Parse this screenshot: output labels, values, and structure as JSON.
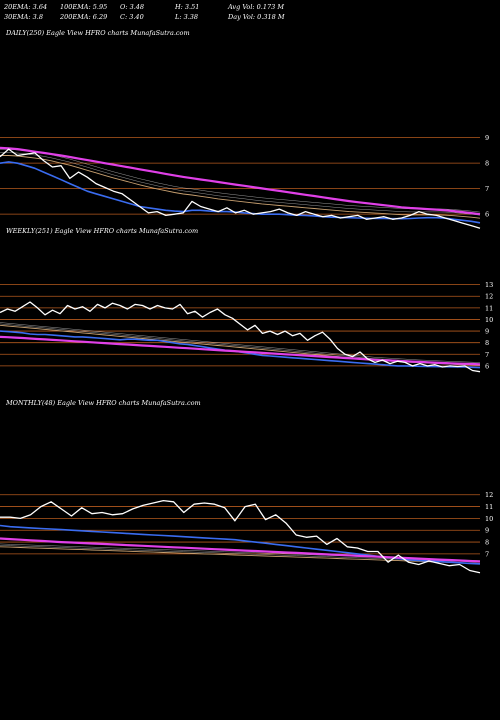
{
  "header": {
    "row1": [
      "20EMA: 3.64",
      "100EMA: 5.95",
      "O: 3.48",
      "H: 3.51",
      "Avg Vol: 0.173 M"
    ],
    "row2": [
      "30EMA: 3.8",
      "200EMA: 6.29",
      "C: 3.40",
      "L: 3.38",
      "Day Vol: 0.318 M"
    ]
  },
  "colors": {
    "background": "#000000",
    "price": "#ffffff",
    "ema_short": "#3a6cf0",
    "ema_long": "#e040e8",
    "ema_mid": "#c8a070",
    "gridline": "#b55a1e"
  },
  "chart_data": [
    {
      "type": "line",
      "title": "DAILY(250) Eagle   View  HFRO charts MunafaSutra.com",
      "y_ticks": [
        "9",
        "8",
        "7",
        "6"
      ],
      "ylim": [
        5.3,
        9.3
      ],
      "series": [
        {
          "values": [
            8.25,
            8.55,
            8.3,
            8.35,
            8.4,
            8.1,
            7.85,
            7.9,
            7.4,
            7.65,
            7.45,
            7.2,
            7.05,
            6.9,
            6.8,
            6.55,
            6.3,
            6.05,
            6.1,
            5.95,
            6.0,
            6.05,
            6.5,
            6.3,
            6.2,
            6.1,
            6.25,
            6.05,
            6.15,
            6.0,
            6.05,
            6.1,
            6.2,
            6.05,
            5.95,
            6.1,
            6.0,
            5.9,
            5.95,
            5.85,
            5.9,
            5.95,
            5.8,
            5.85,
            5.9,
            5.8,
            5.85,
            5.95,
            6.1,
            6.0,
            5.95,
            5.85,
            5.75,
            5.65,
            5.55,
            5.45
          ]
        },
        {
          "values": [
            8.0,
            8.05,
            8.0,
            7.9,
            7.8,
            7.65,
            7.5,
            7.35,
            7.2,
            7.05,
            6.9,
            6.8,
            6.7,
            6.6,
            6.5,
            6.4,
            6.3,
            6.25,
            6.2,
            6.15,
            6.12,
            6.1,
            6.15,
            6.15,
            6.12,
            6.1,
            6.1,
            6.08,
            6.05,
            6.02,
            6.0,
            6.0,
            6.0,
            5.98,
            5.96,
            5.95,
            5.93,
            5.9,
            5.88,
            5.87,
            5.86,
            5.85,
            5.84,
            5.83,
            5.83,
            5.82,
            5.82,
            5.83,
            5.85,
            5.86,
            5.86,
            5.84,
            5.8,
            5.76,
            5.72,
            5.66
          ]
        },
        {
          "values": [
            8.6,
            8.58,
            8.55,
            8.5,
            8.45,
            8.4,
            8.35,
            8.3,
            8.24,
            8.18,
            8.12,
            8.06,
            8.0,
            7.94,
            7.88,
            7.82,
            7.76,
            7.7,
            7.64,
            7.58,
            7.52,
            7.46,
            7.41,
            7.36,
            7.31,
            7.26,
            7.21,
            7.16,
            7.11,
            7.06,
            7.01,
            6.96,
            6.91,
            6.86,
            6.81,
            6.76,
            6.71,
            6.66,
            6.61,
            6.56,
            6.51,
            6.47,
            6.43,
            6.39,
            6.35,
            6.31,
            6.27,
            6.24,
            6.22,
            6.2,
            6.18,
            6.15,
            6.12,
            6.08,
            6.04,
            6.0
          ]
        },
        {
          "values": [
            8.3,
            8.3,
            8.28,
            8.24,
            8.2,
            8.15,
            8.08,
            8.0,
            7.92,
            7.82,
            7.72,
            7.62,
            7.52,
            7.42,
            7.33,
            7.24,
            7.15,
            7.07,
            6.99,
            6.92,
            6.85,
            6.79,
            6.75,
            6.7,
            6.65,
            6.6,
            6.56,
            6.52,
            6.48,
            6.44,
            6.4,
            6.37,
            6.34,
            6.31,
            6.28,
            6.25,
            6.22,
            6.19,
            6.16,
            6.13,
            6.1,
            6.08,
            6.06,
            6.04,
            6.02,
            6.0,
            5.98,
            5.97,
            5.97,
            5.97,
            5.97,
            5.96,
            5.94,
            5.91,
            5.88,
            5.84
          ]
        }
      ]
    },
    {
      "type": "line",
      "title": "WEEKLY(251) Eagle   View  HFRO charts MunafaSutra.com",
      "y_ticks": [
        "13",
        "12",
        "11",
        "10",
        "9",
        "8",
        "7",
        "6"
      ],
      "ylim": [
        5.3,
        13.4
      ],
      "series": [
        {
          "values": [
            10.6,
            10.9,
            10.7,
            11.1,
            11.5,
            11.0,
            10.4,
            10.8,
            10.5,
            11.2,
            10.9,
            11.1,
            10.7,
            11.3,
            11.0,
            11.4,
            11.2,
            10.9,
            11.3,
            11.2,
            10.9,
            11.2,
            11.0,
            10.9,
            11.3,
            10.5,
            10.7,
            10.2,
            10.6,
            10.9,
            10.4,
            10.1,
            9.6,
            9.1,
            9.5,
            8.8,
            9.0,
            8.7,
            9.0,
            8.6,
            8.8,
            8.2,
            8.6,
            8.9,
            8.3,
            7.5,
            7.0,
            6.8,
            7.2,
            6.6,
            6.3,
            6.5,
            6.2,
            6.4,
            6.3,
            6.0,
            6.2,
            6.0,
            6.1,
            5.9,
            6.0,
            5.95,
            6.0,
            5.6,
            5.5
          ]
        },
        {
          "values": [
            9.0,
            8.95,
            8.9,
            8.85,
            8.75,
            8.7,
            8.7,
            8.65,
            8.6,
            8.55,
            8.5,
            8.5,
            8.45,
            8.4,
            8.35,
            8.3,
            8.25,
            8.3,
            8.3,
            8.25,
            8.2,
            8.2,
            8.1,
            8.0,
            7.9,
            7.85,
            7.75,
            7.65,
            7.55,
            7.45,
            7.35,
            7.3,
            7.2,
            7.1,
            7.0,
            6.9,
            6.85,
            6.8,
            6.75,
            6.7,
            6.65,
            6.6,
            6.55,
            6.5,
            6.45,
            6.4,
            6.35,
            6.3,
            6.25,
            6.2,
            6.15,
            6.1,
            6.05,
            6.0,
            6.0,
            5.98,
            5.96,
            5.95,
            5.94,
            5.93,
            5.92,
            5.9,
            5.9,
            5.88,
            5.85
          ]
        },
        {
          "values": [
            8.5,
            8.47,
            8.44,
            8.4,
            8.36,
            8.32,
            8.28,
            8.24,
            8.2,
            8.16,
            8.12,
            8.08,
            8.04,
            8.0,
            7.96,
            7.92,
            7.88,
            7.84,
            7.8,
            7.76,
            7.72,
            7.68,
            7.64,
            7.6,
            7.56,
            7.52,
            7.48,
            7.44,
            7.4,
            7.36,
            7.32,
            7.28,
            7.24,
            7.2,
            7.16,
            7.12,
            7.08,
            7.04,
            7.0,
            6.96,
            6.92,
            6.88,
            6.84,
            6.8,
            6.76,
            6.72,
            6.68,
            6.64,
            6.6,
            6.56,
            6.52,
            6.49,
            6.46,
            6.43,
            6.4,
            6.37,
            6.34,
            6.31,
            6.28,
            6.25,
            6.22,
            6.2,
            6.18,
            6.16,
            6.14
          ]
        },
        {
          "values": [
            9.5,
            9.44,
            9.38,
            9.32,
            9.26,
            9.2,
            9.14,
            9.08,
            9.02,
            8.96,
            8.9,
            8.84,
            8.78,
            8.72,
            8.66,
            8.6,
            8.54,
            8.48,
            8.42,
            8.36,
            8.3,
            8.24,
            8.18,
            8.12,
            8.06,
            8.0,
            7.94,
            7.88,
            7.82,
            7.76,
            7.7,
            7.64,
            7.58,
            7.52,
            7.46,
            7.4,
            7.34,
            7.28,
            7.22,
            7.16,
            7.1,
            7.04,
            6.98,
            6.92,
            6.86,
            6.8,
            6.74,
            6.68,
            6.62,
            6.56,
            6.5,
            6.46,
            6.42,
            6.38,
            6.34,
            6.3,
            6.27,
            6.24,
            6.21,
            6.18,
            6.15,
            6.12,
            6.1,
            6.08,
            6.05
          ]
        }
      ]
    },
    {
      "type": "line",
      "title": "MONTHLY(48) Eagle   View  HFRO charts MunafaSutra.com",
      "y_ticks": [
        "12",
        "11",
        "10",
        "9",
        "8",
        "7"
      ],
      "ylim": [
        5.3,
        12.4
      ],
      "series": [
        {
          "values": [
            10.1,
            10.1,
            10.0,
            10.3,
            11.0,
            11.4,
            10.8,
            10.2,
            10.9,
            10.4,
            10.5,
            10.3,
            10.4,
            10.8,
            11.1,
            11.3,
            11.5,
            11.4,
            10.5,
            11.2,
            11.3,
            11.2,
            10.9,
            9.8,
            11.0,
            11.2,
            9.9,
            10.3,
            9.6,
            8.6,
            8.4,
            8.5,
            7.8,
            8.3,
            7.6,
            7.5,
            7.2,
            7.2,
            6.3,
            6.9,
            6.3,
            6.1,
            6.4,
            6.2,
            6.0,
            6.1,
            5.6,
            5.4
          ]
        },
        {
          "values": [
            9.4,
            9.3,
            9.25,
            9.2,
            9.15,
            9.1,
            9.05,
            9.0,
            8.95,
            8.9,
            8.85,
            8.8,
            8.75,
            8.7,
            8.65,
            8.6,
            8.55,
            8.5,
            8.45,
            8.4,
            8.35,
            8.3,
            8.25,
            8.2,
            8.1,
            8.0,
            7.9,
            7.8,
            7.7,
            7.6,
            7.5,
            7.4,
            7.3,
            7.2,
            7.1,
            7.0,
            6.9,
            6.8,
            6.7,
            6.6,
            6.5,
            6.45,
            6.4,
            6.35,
            6.3,
            6.25,
            6.2,
            6.15
          ]
        },
        {
          "values": [
            8.3,
            8.25,
            8.2,
            8.15,
            8.1,
            8.05,
            8.0,
            7.96,
            7.92,
            7.88,
            7.84,
            7.8,
            7.76,
            7.72,
            7.68,
            7.64,
            7.6,
            7.56,
            7.52,
            7.48,
            7.44,
            7.4,
            7.36,
            7.32,
            7.28,
            7.24,
            7.2,
            7.16,
            7.12,
            7.08,
            7.04,
            7.0,
            6.96,
            6.92,
            6.88,
            6.84,
            6.8,
            6.76,
            6.72,
            6.68,
            6.64,
            6.6,
            6.56,
            6.52,
            6.48,
            6.44,
            6.4,
            6.36
          ]
        },
        {
          "values": [
            7.6,
            7.57,
            7.54,
            7.51,
            7.48,
            7.45,
            7.42,
            7.39,
            7.36,
            7.33,
            7.3,
            7.27,
            7.24,
            7.21,
            7.18,
            7.15,
            7.12,
            7.09,
            7.06,
            7.03,
            7.0,
            6.97,
            6.94,
            6.91,
            6.88,
            6.85,
            6.82,
            6.79,
            6.76,
            6.73,
            6.7,
            6.67,
            6.64,
            6.61,
            6.58,
            6.55,
            6.52,
            6.49,
            6.46,
            6.43,
            6.4,
            6.37,
            6.34,
            6.31,
            6.28,
            6.25,
            6.22,
            6.19
          ]
        }
      ]
    }
  ]
}
